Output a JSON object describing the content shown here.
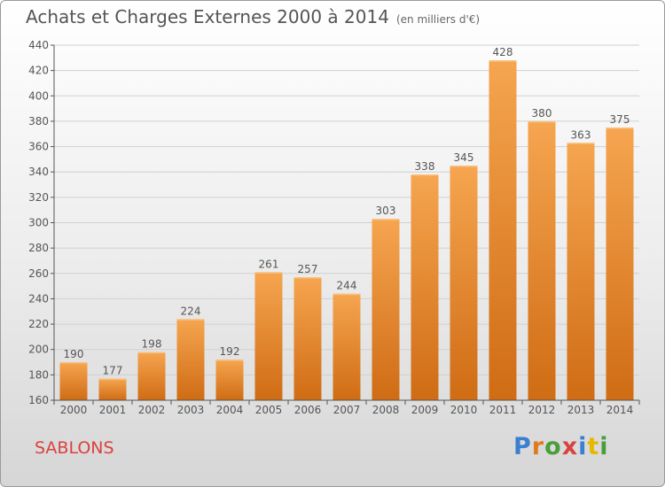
{
  "header": {
    "title": "Achats et Charges Externes 2000 à 2014",
    "subtitle": "(en milliers d'€)"
  },
  "footer": {
    "city": "SABLONS",
    "brand": "Proxiti",
    "brand_colors": [
      "#3a7fd0",
      "#e07b1d",
      "#4a9e3a",
      "#d9423f",
      "#3a7fd0",
      "#e6b800",
      "#4a9e3a"
    ]
  },
  "colors": {
    "bar_top": "#f6a550",
    "bar_bottom": "#cf6c14",
    "text": "#555555",
    "city": "#d9423f"
  },
  "chart_data": {
    "type": "bar",
    "title": "Achats et Charges Externes 2000 à 2014",
    "subtitle": "(en milliers d'€)",
    "xlabel": "",
    "ylabel": "",
    "categories": [
      "2000",
      "2001",
      "2002",
      "2003",
      "2004",
      "2005",
      "2006",
      "2007",
      "2008",
      "2009",
      "2010",
      "2011",
      "2012",
      "2013",
      "2014"
    ],
    "values": [
      190,
      177,
      198,
      224,
      192,
      261,
      257,
      244,
      303,
      338,
      345,
      428,
      380,
      363,
      375
    ],
    "ylim": [
      160,
      440
    ],
    "yticks": [
      160,
      180,
      200,
      220,
      240,
      260,
      280,
      300,
      320,
      340,
      360,
      380,
      400,
      420,
      440
    ],
    "grid": true,
    "data_labels": true
  }
}
